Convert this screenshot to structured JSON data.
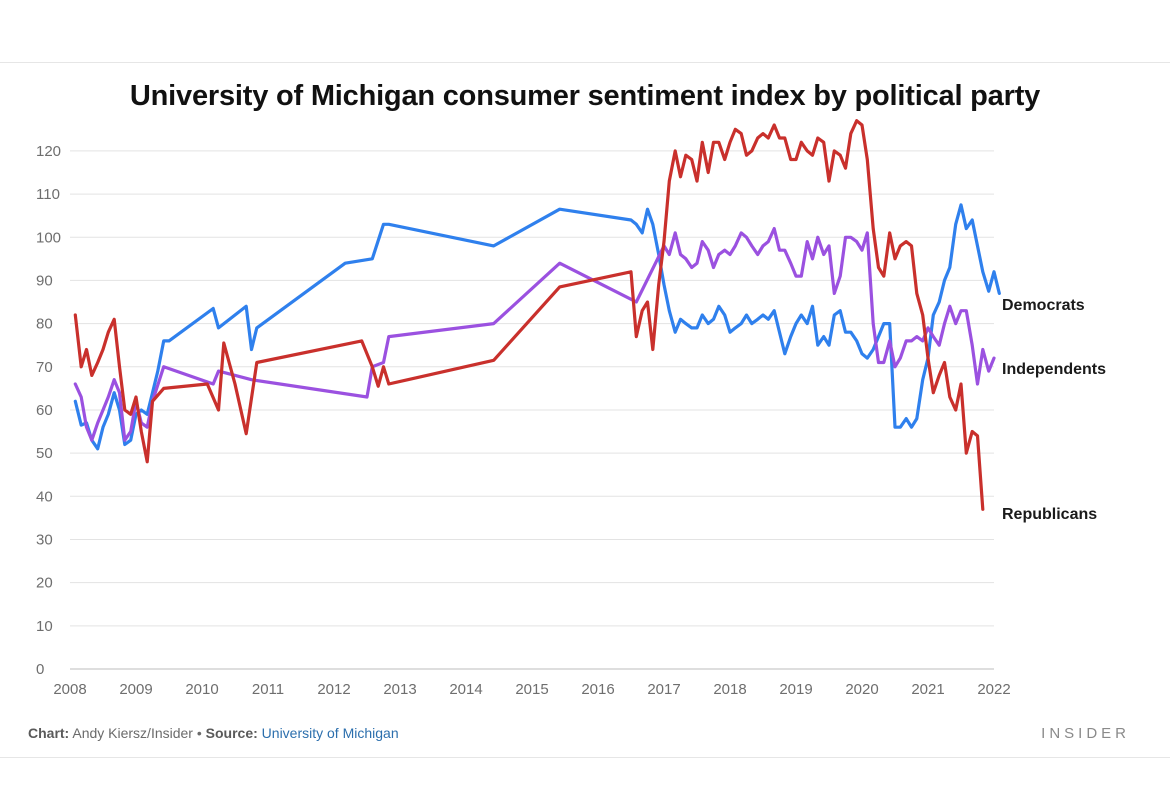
{
  "chart_data": {
    "type": "line",
    "title": "University of Michigan consumer sentiment index by political party",
    "xlabel": "",
    "ylabel": "",
    "xlim": [
      2008,
      2022
    ],
    "ylim": [
      0,
      126
    ],
    "x_ticks": [
      "2008",
      "2009",
      "2010",
      "2011",
      "2012",
      "2013",
      "2014",
      "2015",
      "2016",
      "2017",
      "2018",
      "2019",
      "2020",
      "2021",
      "2022"
    ],
    "y_ticks": [
      "0",
      "10",
      "20",
      "30",
      "40",
      "50",
      "60",
      "70",
      "80",
      "90",
      "100",
      "110",
      "120"
    ],
    "grid": "horizontal",
    "legend": "direct labels at right end of lines",
    "series": [
      {
        "name": "Democrats",
        "color": "#2f80ed",
        "points": [
          [
            2008.08,
            62
          ],
          [
            2008.17,
            56.5
          ],
          [
            2008.25,
            57
          ],
          [
            2008.33,
            53
          ],
          [
            2008.42,
            51
          ],
          [
            2008.5,
            56
          ],
          [
            2008.58,
            59
          ],
          [
            2008.67,
            64
          ],
          [
            2008.75,
            60
          ],
          [
            2008.83,
            52
          ],
          [
            2008.92,
            53
          ],
          [
            2009.0,
            59
          ],
          [
            2009.08,
            60
          ],
          [
            2009.17,
            59
          ],
          [
            2009.25,
            64
          ],
          [
            2009.33,
            69
          ],
          [
            2009.42,
            76
          ],
          [
            2009.5,
            76
          ],
          [
            2010.17,
            83.5
          ],
          [
            2010.25,
            79
          ],
          [
            2010.67,
            84
          ],
          [
            2010.75,
            74
          ],
          [
            2010.83,
            79
          ],
          [
            2012.17,
            94
          ],
          [
            2012.58,
            95
          ],
          [
            2012.75,
            103
          ],
          [
            2012.83,
            103
          ],
          [
            2014.42,
            98
          ],
          [
            2015.42,
            106.5
          ],
          [
            2016.5,
            104
          ],
          [
            2016.58,
            103
          ],
          [
            2016.67,
            101
          ],
          [
            2016.75,
            106.5
          ],
          [
            2016.83,
            103
          ],
          [
            2016.92,
            96
          ],
          [
            2017.0,
            89
          ],
          [
            2017.08,
            83
          ],
          [
            2017.17,
            78
          ],
          [
            2017.25,
            81
          ],
          [
            2017.33,
            80
          ],
          [
            2017.42,
            79
          ],
          [
            2017.5,
            79
          ],
          [
            2017.58,
            82
          ],
          [
            2017.67,
            80
          ],
          [
            2017.75,
            81
          ],
          [
            2017.83,
            84
          ],
          [
            2017.92,
            82
          ],
          [
            2018.0,
            78
          ],
          [
            2018.08,
            79
          ],
          [
            2018.17,
            80
          ],
          [
            2018.25,
            82
          ],
          [
            2018.33,
            80
          ],
          [
            2018.42,
            81
          ],
          [
            2018.5,
            82
          ],
          [
            2018.58,
            81
          ],
          [
            2018.67,
            83
          ],
          [
            2018.75,
            78
          ],
          [
            2018.83,
            73
          ],
          [
            2018.92,
            77
          ],
          [
            2019.0,
            80
          ],
          [
            2019.08,
            82
          ],
          [
            2019.17,
            80
          ],
          [
            2019.25,
            84
          ],
          [
            2019.33,
            75
          ],
          [
            2019.42,
            77
          ],
          [
            2019.5,
            75
          ],
          [
            2019.58,
            82
          ],
          [
            2019.67,
            83
          ],
          [
            2019.75,
            78
          ],
          [
            2019.83,
            78
          ],
          [
            2019.92,
            76
          ],
          [
            2020.0,
            73
          ],
          [
            2020.08,
            72
          ],
          [
            2020.17,
            74
          ],
          [
            2020.25,
            77
          ],
          [
            2020.33,
            80
          ],
          [
            2020.42,
            80
          ],
          [
            2020.5,
            56
          ],
          [
            2020.58,
            56
          ],
          [
            2020.67,
            58
          ],
          [
            2020.75,
            56
          ],
          [
            2020.83,
            58
          ],
          [
            2020.92,
            67
          ],
          [
            2021.0,
            72
          ],
          [
            2021.08,
            82
          ],
          [
            2021.17,
            85
          ],
          [
            2021.25,
            90
          ],
          [
            2021.33,
            93
          ],
          [
            2021.42,
            103
          ],
          [
            2021.5,
            107.5
          ],
          [
            2021.58,
            102
          ],
          [
            2021.67,
            104
          ],
          [
            2021.75,
            98
          ],
          [
            2021.83,
            92
          ],
          [
            2021.92,
            87.5
          ],
          [
            2022.0,
            92
          ],
          [
            2022.08,
            87
          ]
        ]
      },
      {
        "name": "Independents",
        "color": "#9b51e0",
        "points": [
          [
            2008.08,
            66
          ],
          [
            2008.17,
            63
          ],
          [
            2008.25,
            56
          ],
          [
            2008.33,
            53
          ],
          [
            2008.42,
            57
          ],
          [
            2008.5,
            60
          ],
          [
            2008.58,
            63
          ],
          [
            2008.67,
            67
          ],
          [
            2008.75,
            64
          ],
          [
            2008.83,
            53
          ],
          [
            2008.92,
            55
          ],
          [
            2009.0,
            62
          ],
          [
            2009.08,
            57
          ],
          [
            2009.17,
            56
          ],
          [
            2009.25,
            62
          ],
          [
            2009.42,
            70
          ],
          [
            2010.17,
            66
          ],
          [
            2010.25,
            69
          ],
          [
            2010.75,
            67
          ],
          [
            2012.5,
            63
          ],
          [
            2012.58,
            70
          ],
          [
            2012.75,
            71
          ],
          [
            2012.83,
            77
          ],
          [
            2014.42,
            80
          ],
          [
            2015.42,
            94
          ],
          [
            2016.58,
            85
          ],
          [
            2017.0,
            98
          ],
          [
            2017.08,
            96
          ],
          [
            2017.17,
            101
          ],
          [
            2017.25,
            96
          ],
          [
            2017.33,
            95
          ],
          [
            2017.42,
            93
          ],
          [
            2017.5,
            94
          ],
          [
            2017.58,
            99
          ],
          [
            2017.67,
            97
          ],
          [
            2017.75,
            93
          ],
          [
            2017.83,
            96
          ],
          [
            2017.92,
            97
          ],
          [
            2018.0,
            96
          ],
          [
            2018.08,
            98
          ],
          [
            2018.17,
            101
          ],
          [
            2018.25,
            100
          ],
          [
            2018.33,
            98
          ],
          [
            2018.42,
            96
          ],
          [
            2018.5,
            98
          ],
          [
            2018.58,
            99
          ],
          [
            2018.67,
            102
          ],
          [
            2018.75,
            97
          ],
          [
            2018.83,
            97
          ],
          [
            2018.92,
            94
          ],
          [
            2019.0,
            91
          ],
          [
            2019.08,
            91
          ],
          [
            2019.17,
            99
          ],
          [
            2019.25,
            95
          ],
          [
            2019.33,
            100
          ],
          [
            2019.42,
            96
          ],
          [
            2019.5,
            98
          ],
          [
            2019.58,
            87
          ],
          [
            2019.67,
            91
          ],
          [
            2019.75,
            100
          ],
          [
            2019.83,
            100
          ],
          [
            2019.92,
            99
          ],
          [
            2020.0,
            97
          ],
          [
            2020.08,
            101
          ],
          [
            2020.17,
            80
          ],
          [
            2020.25,
            71
          ],
          [
            2020.33,
            71
          ],
          [
            2020.42,
            76
          ],
          [
            2020.5,
            70
          ],
          [
            2020.58,
            72
          ],
          [
            2020.67,
            76
          ],
          [
            2020.75,
            76
          ],
          [
            2020.83,
            77
          ],
          [
            2020.92,
            76
          ],
          [
            2021.0,
            79
          ],
          [
            2021.08,
            77
          ],
          [
            2021.17,
            75
          ],
          [
            2021.25,
            80
          ],
          [
            2021.33,
            84
          ],
          [
            2021.42,
            80
          ],
          [
            2021.5,
            83
          ],
          [
            2021.58,
            83
          ],
          [
            2021.67,
            75
          ],
          [
            2021.75,
            66
          ],
          [
            2021.83,
            74
          ],
          [
            2021.92,
            69
          ],
          [
            2022.0,
            72
          ]
        ]
      },
      {
        "name": "Republicans",
        "color": "#c9302c",
        "points": [
          [
            2008.08,
            82
          ],
          [
            2008.17,
            70
          ],
          [
            2008.25,
            74
          ],
          [
            2008.33,
            68
          ],
          [
            2008.42,
            71
          ],
          [
            2008.5,
            74
          ],
          [
            2008.58,
            78
          ],
          [
            2008.67,
            81
          ],
          [
            2008.75,
            70
          ],
          [
            2008.83,
            60
          ],
          [
            2008.92,
            59
          ],
          [
            2009.0,
            63
          ],
          [
            2009.08,
            55
          ],
          [
            2009.17,
            48
          ],
          [
            2009.25,
            62
          ],
          [
            2009.42,
            65
          ],
          [
            2010.08,
            66
          ],
          [
            2010.25,
            60
          ],
          [
            2010.33,
            75.5
          ],
          [
            2010.5,
            66
          ],
          [
            2010.67,
            54.5
          ],
          [
            2010.83,
            71
          ],
          [
            2012.42,
            76
          ],
          [
            2012.58,
            70
          ],
          [
            2012.67,
            65.5
          ],
          [
            2012.75,
            70
          ],
          [
            2012.83,
            66
          ],
          [
            2014.42,
            71.5
          ],
          [
            2015.42,
            88.5
          ],
          [
            2016.5,
            92
          ],
          [
            2016.58,
            77
          ],
          [
            2016.67,
            83
          ],
          [
            2016.75,
            85
          ],
          [
            2016.83,
            74
          ],
          [
            2016.92,
            89
          ],
          [
            2017.0,
            99
          ],
          [
            2017.08,
            113
          ],
          [
            2017.17,
            120
          ],
          [
            2017.25,
            114
          ],
          [
            2017.33,
            119
          ],
          [
            2017.42,
            118
          ],
          [
            2017.5,
            113
          ],
          [
            2017.58,
            122
          ],
          [
            2017.67,
            115
          ],
          [
            2017.75,
            122
          ],
          [
            2017.83,
            122
          ],
          [
            2017.92,
            118
          ],
          [
            2018.0,
            122
          ],
          [
            2018.08,
            125
          ],
          [
            2018.17,
            124
          ],
          [
            2018.25,
            119
          ],
          [
            2018.33,
            120
          ],
          [
            2018.42,
            123
          ],
          [
            2018.5,
            124
          ],
          [
            2018.58,
            123
          ],
          [
            2018.67,
            126
          ],
          [
            2018.75,
            123
          ],
          [
            2018.83,
            123
          ],
          [
            2018.92,
            118
          ],
          [
            2019.0,
            118
          ],
          [
            2019.08,
            122
          ],
          [
            2019.17,
            120
          ],
          [
            2019.25,
            119
          ],
          [
            2019.33,
            123
          ],
          [
            2019.42,
            122
          ],
          [
            2019.5,
            113
          ],
          [
            2019.58,
            120
          ],
          [
            2019.67,
            119
          ],
          [
            2019.75,
            116
          ],
          [
            2019.83,
            124
          ],
          [
            2019.92,
            127
          ],
          [
            2020.0,
            126
          ],
          [
            2020.08,
            118
          ],
          [
            2020.17,
            102
          ],
          [
            2020.25,
            93
          ],
          [
            2020.33,
            91
          ],
          [
            2020.42,
            101
          ],
          [
            2020.5,
            95
          ],
          [
            2020.58,
            98
          ],
          [
            2020.67,
            99
          ],
          [
            2020.75,
            98
          ],
          [
            2020.83,
            87
          ],
          [
            2020.92,
            82
          ],
          [
            2021.0,
            72
          ],
          [
            2021.08,
            64
          ],
          [
            2021.17,
            68
          ],
          [
            2021.25,
            71
          ],
          [
            2021.33,
            63
          ],
          [
            2021.42,
            60
          ],
          [
            2021.5,
            66
          ],
          [
            2021.58,
            50
          ],
          [
            2021.67,
            55
          ],
          [
            2021.75,
            54
          ],
          [
            2021.83,
            37
          ]
        ]
      }
    ]
  },
  "footer": {
    "chart_label": "Chart:",
    "chart_author": " Andy Kiersz/Insider",
    "separator": " • ",
    "source_label": "Source:",
    "source_value": " University of Michigan"
  },
  "brand": "INSIDER"
}
